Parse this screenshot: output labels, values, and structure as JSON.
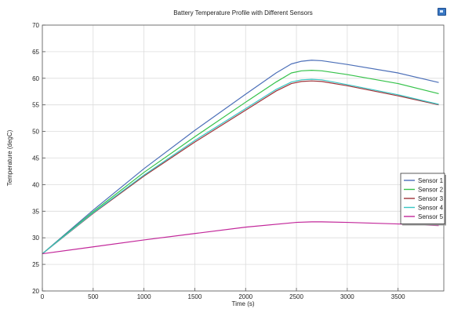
{
  "chart_data": {
    "type": "line",
    "title": "Battery Temperature Profile with Different Sensors",
    "xlabel": "Time (s)",
    "ylabel": "Temperature (degC)",
    "xlim": [
      0,
      3950
    ],
    "ylim": [
      20,
      70
    ],
    "xticks": [
      0,
      500,
      1000,
      1500,
      2000,
      2500,
      3000,
      3500
    ],
    "yticks": [
      20,
      25,
      30,
      35,
      40,
      45,
      50,
      55,
      60,
      65,
      70
    ],
    "grid": true,
    "legend_position": "right",
    "series": [
      {
        "name": "Sensor 1",
        "color": "#4c6fb8",
        "x": [
          0,
          500,
          1000,
          1500,
          2000,
          2300,
          2450,
          2550,
          2650,
          2750,
          3000,
          3500,
          3900
        ],
        "y": [
          27.0,
          35.2,
          43.0,
          50.2,
          57.0,
          61.0,
          62.7,
          63.2,
          63.4,
          63.3,
          62.6,
          61.0,
          59.2
        ]
      },
      {
        "name": "Sensor 2",
        "color": "#35c24a",
        "x": [
          0,
          500,
          1000,
          1500,
          2000,
          2300,
          2450,
          2550,
          2650,
          2750,
          3000,
          3500,
          3900
        ],
        "y": [
          27.0,
          34.9,
          42.3,
          49.0,
          55.5,
          59.3,
          61.0,
          61.4,
          61.5,
          61.4,
          60.7,
          59.0,
          57.1
        ]
      },
      {
        "name": "Sensor 3",
        "color": "#a03238",
        "x": [
          0,
          500,
          1000,
          1500,
          2000,
          2300,
          2450,
          2550,
          2650,
          2750,
          3000,
          3500,
          3900
        ],
        "y": [
          27.0,
          34.6,
          41.6,
          48.0,
          54.0,
          57.6,
          59.0,
          59.4,
          59.5,
          59.4,
          58.6,
          56.7,
          55.0
        ]
      },
      {
        "name": "Sensor 4",
        "color": "#39c6c4",
        "x": [
          0,
          500,
          1000,
          1500,
          2000,
          2300,
          2450,
          2550,
          2650,
          2750,
          3000,
          3500,
          3900
        ],
        "y": [
          27.0,
          34.7,
          41.8,
          48.3,
          54.3,
          57.9,
          59.3,
          59.7,
          59.8,
          59.7,
          58.8,
          56.9,
          55.1
        ]
      },
      {
        "name": "Sensor 5",
        "color": "#c2279a",
        "x": [
          0,
          500,
          1000,
          1500,
          2000,
          2500,
          2650,
          2750,
          3000,
          3500,
          3900
        ],
        "y": [
          27.0,
          28.3,
          29.6,
          30.8,
          32.0,
          32.9,
          33.0,
          33.0,
          32.9,
          32.6,
          32.3
        ]
      }
    ]
  }
}
